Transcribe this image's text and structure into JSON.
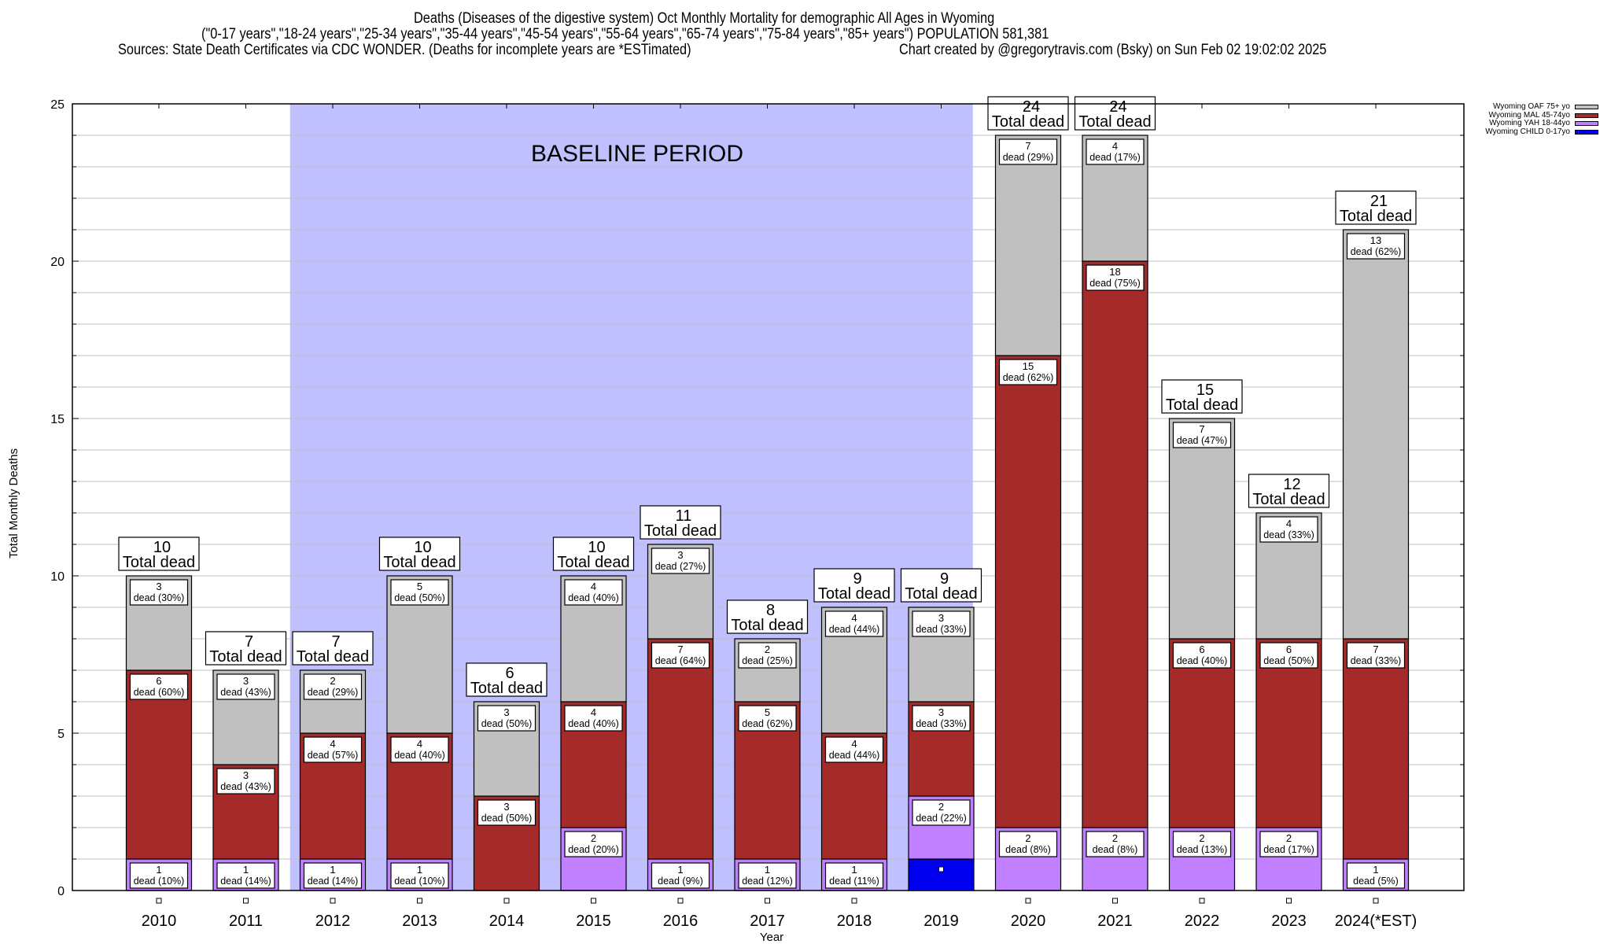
{
  "header": {
    "title_line1": "Deaths (Diseases of the digestive system) Oct Monthly Mortality for demographic All Ages in Wyoming",
    "title_line2": "(\"0-17 years\",\"18-24 years\",\"25-34 years\",\"35-44 years\",\"45-54 years\",\"55-64 years\",\"65-74 years\",\"75-84 years\",\"85+ years\") POPULATION 581,381",
    "sources": "Sources: State Death Certificates via CDC WONDER. (Deaths for incomplete years are *ESTimated)",
    "credit": "Chart created by @gregorytravis.com (Bsky) on Sun Feb 02 19:02:02 2025"
  },
  "legend": [
    {
      "label": "Wyoming OAF 75+ yo",
      "color": "#c0c0c0"
    },
    {
      "label": "Wyoming MAL 45-74yo",
      "color": "#a52a2a"
    },
    {
      "label": "Wyoming YAH 18-44yo",
      "color": "#c080ff"
    },
    {
      "label": "Wyoming CHILD 0-17yo",
      "color": "#0000ee"
    }
  ],
  "chart_data": {
    "type": "bar",
    "stacked": true,
    "title": "Deaths (Diseases of the digestive system) Oct Monthly Mortality for demographic All Ages in Wyoming",
    "xlabel": "Year",
    "ylabel": "Total Monthly Deaths",
    "ylim": [
      0,
      25
    ],
    "yticks": [
      "0",
      "5",
      "10",
      "15",
      "20",
      "25"
    ],
    "ytick_values": [
      0,
      5,
      10,
      15,
      20,
      25
    ],
    "grid": true,
    "legend_position": "top-right",
    "annotation": "BASELINE PERIOD",
    "baseline_period": [
      "2012",
      "2019"
    ],
    "total_suffix": "Total dead",
    "categories": [
      "2010",
      "2011",
      "2012",
      "2013",
      "2014",
      "2015",
      "2016",
      "2017",
      "2018",
      "2019",
      "2020",
      "2021",
      "2022",
      "2023",
      "2024(*EST)"
    ],
    "series": [
      {
        "name": "Wyoming CHILD 0-17yo",
        "color": "#0000ee",
        "values": [
          0,
          0,
          0,
          0,
          0,
          0,
          0,
          0,
          0,
          1,
          0,
          0,
          0,
          0,
          0
        ],
        "labels": [
          "",
          "",
          "",
          "",
          "",
          "",
          "",
          "",
          "",
          "",
          "",
          "",
          "",
          "",
          ""
        ]
      },
      {
        "name": "Wyoming YAH 18-44yo",
        "color": "#c080ff",
        "values": [
          1,
          1,
          1,
          1,
          0,
          2,
          1,
          1,
          1,
          2,
          2,
          2,
          2,
          2,
          1
        ],
        "labels": [
          "dead (10%)",
          "dead (14%)",
          "dead (14%)",
          "dead (10%)",
          "",
          "dead (20%)",
          "dead (9%)",
          "dead (12%)",
          "dead (11%)",
          "dead (22%)",
          "dead (8%)",
          "dead (8%)",
          "dead (13%)",
          "dead (17%)",
          "dead (5%)"
        ]
      },
      {
        "name": "Wyoming MAL 45-74yo",
        "color": "#a52a2a",
        "values": [
          6,
          3,
          4,
          4,
          3,
          4,
          7,
          5,
          4,
          3,
          15,
          18,
          6,
          6,
          7
        ],
        "labels": [
          "dead (60%)",
          "dead (43%)",
          "dead (57%)",
          "dead (40%)",
          "dead (50%)",
          "dead (40%)",
          "dead (64%)",
          "dead (62%)",
          "dead (44%)",
          "dead (33%)",
          "dead (62%)",
          "dead (75%)",
          "dead (40%)",
          "dead (50%)",
          "dead (33%)"
        ]
      },
      {
        "name": "Wyoming OAF 75+ yo",
        "color": "#c0c0c0",
        "values": [
          3,
          3,
          2,
          5,
          3,
          4,
          3,
          2,
          4,
          3,
          7,
          4,
          7,
          4,
          13
        ],
        "labels": [
          "dead (30%)",
          "dead (43%)",
          "dead (29%)",
          "dead (50%)",
          "dead (50%)",
          "dead (40%)",
          "dead (27%)",
          "dead (25%)",
          "dead (44%)",
          "dead (33%)",
          "dead (29%)",
          "dead (17%)",
          "dead (47%)",
          "dead (33%)",
          "dead (62%)"
        ]
      }
    ],
    "totals": [
      10,
      7,
      7,
      10,
      6,
      10,
      11,
      8,
      9,
      9,
      24,
      24,
      15,
      12,
      21
    ],
    "tick_markers": [
      true,
      true,
      true,
      true,
      true,
      true,
      true,
      true,
      true,
      false,
      true,
      true,
      true,
      true,
      true
    ]
  },
  "colors": {
    "baseline_band": "#c0c0ff",
    "gridline": "#c0c0c0"
  }
}
